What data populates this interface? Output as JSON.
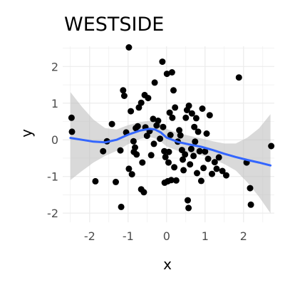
{
  "chart_data": {
    "type": "scatter",
    "title": "WESTSIDE",
    "xlabel": "x",
    "ylabel": "y",
    "xlim": [
      -2.7,
      2.8
    ],
    "ylim": [
      -2.25,
      2.55
    ],
    "x_ticks": [
      -2,
      -1,
      0,
      1,
      2
    ],
    "y_ticks": [
      -2,
      -1,
      0,
      1,
      2
    ],
    "x_tick_labels": [
      "-2",
      "-1",
      "0",
      "1",
      "2"
    ],
    "y_tick_labels": [
      "-2",
      "-1",
      "0",
      "1",
      "2"
    ],
    "grid": true,
    "point_color": "#000000",
    "smooth_color": "#3366ff",
    "band_color": "#bfbfbf",
    "points": [
      [
        -2.47,
        0.6
      ],
      [
        -2.46,
        0.22
      ],
      [
        -1.85,
        -1.13
      ],
      [
        -1.65,
        -0.31
      ],
      [
        -1.55,
        -0.04
      ],
      [
        -1.42,
        0.43
      ],
      [
        -1.32,
        -1.15
      ],
      [
        -1.2,
        -0.29
      ],
      [
        -1.18,
        -1.83
      ],
      [
        -1.13,
        1.35
      ],
      [
        -1.1,
        1.2
      ],
      [
        -1.05,
        0.2
      ],
      [
        -0.98,
        -0.79
      ],
      [
        -0.98,
        2.52
      ],
      [
        -0.93,
        0.78
      ],
      [
        -0.9,
        -0.94
      ],
      [
        -0.86,
        -0.04
      ],
      [
        -0.85,
        -0.33
      ],
      [
        -0.82,
        -0.21
      ],
      [
        -0.8,
        0.32
      ],
      [
        -0.78,
        -0.4
      ],
      [
        -0.75,
        0.37
      ],
      [
        -0.72,
        0.88
      ],
      [
        -0.66,
        1.01
      ],
      [
        -0.66,
        -1.35
      ],
      [
        -0.63,
        -0.62
      ],
      [
        -0.59,
        -1.43
      ],
      [
        -0.57,
        1.22
      ],
      [
        -0.55,
        0.34
      ],
      [
        -0.51,
        0.11
      ],
      [
        -0.48,
        1.14
      ],
      [
        -0.44,
        0.24
      ],
      [
        -0.4,
        -0.42
      ],
      [
        -0.35,
        0.57
      ],
      [
        -0.33,
        -0.11
      ],
      [
        -0.31,
        1.56
      ],
      [
        -0.26,
        0.39
      ],
      [
        -0.22,
        0.52
      ],
      [
        -0.17,
        0.03
      ],
      [
        -0.11,
        2.13
      ],
      [
        -0.09,
        0.35
      ],
      [
        -0.06,
        -0.31
      ],
      [
        -0.05,
        -1.17
      ],
      [
        -0.03,
        -0.47
      ],
      [
        0.01,
        1.8
      ],
      [
        0.03,
        -1.13
      ],
      [
        0.05,
        -0.62
      ],
      [
        0.06,
        -0.33
      ],
      [
        0.08,
        0.74
      ],
      [
        0.1,
        0.13
      ],
      [
        0.12,
        -1.1
      ],
      [
        0.14,
        1.84
      ],
      [
        0.15,
        0.6
      ],
      [
        0.18,
        1.35
      ],
      [
        0.2,
        -0.75
      ],
      [
        0.22,
        0.88
      ],
      [
        0.25,
        -1.11
      ],
      [
        0.29,
        -0.05
      ],
      [
        0.33,
        0.26
      ],
      [
        0.36,
        0.12
      ],
      [
        0.4,
        -0.28
      ],
      [
        0.42,
        -0.54
      ],
      [
        0.44,
        -0.83
      ],
      [
        0.48,
        -0.4
      ],
      [
        0.5,
        0.6
      ],
      [
        0.53,
        0.81
      ],
      [
        0.55,
        -1.65
      ],
      [
        0.57,
        -1.86
      ],
      [
        0.58,
        0.93
      ],
      [
        0.61,
        -0.67
      ],
      [
        0.64,
        -0.25
      ],
      [
        0.66,
        0.72
      ],
      [
        0.7,
        -0.44
      ],
      [
        0.72,
        0.35
      ],
      [
        0.74,
        -0.05
      ],
      [
        0.77,
        0.59
      ],
      [
        0.79,
        -0.91
      ],
      [
        0.82,
        0.22
      ],
      [
        0.86,
        -0.31
      ],
      [
        0.9,
        -1.12
      ],
      [
        0.93,
        0.85
      ],
      [
        0.96,
        -0.77
      ],
      [
        1.0,
        -0.32
      ],
      [
        1.04,
        0.17
      ],
      [
        1.08,
        -0.52
      ],
      [
        1.12,
        0.67
      ],
      [
        1.18,
        -0.93
      ],
      [
        1.25,
        -0.61
      ],
      [
        1.3,
        -0.79
      ],
      [
        1.36,
        -0.48
      ],
      [
        1.45,
        -0.85
      ],
      [
        1.55,
        -0.97
      ],
      [
        1.88,
        1.7
      ],
      [
        2.08,
        -0.62
      ],
      [
        2.17,
        -1.32
      ],
      [
        2.19,
        -1.77
      ],
      [
        2.72,
        -0.17
      ]
    ],
    "smooth": {
      "x": [
        -2.5,
        -2.2,
        -1.9,
        -1.6,
        -1.3,
        -1.0,
        -0.7,
        -0.45,
        -0.3,
        -0.15,
        0.0,
        0.3,
        0.6,
        0.9,
        1.2,
        1.5,
        1.8,
        2.1,
        2.4,
        2.7
      ],
      "y": [
        0.05,
        0.0,
        -0.05,
        -0.07,
        0.0,
        0.14,
        0.25,
        0.3,
        0.28,
        0.2,
        0.06,
        -0.06,
        -0.13,
        -0.19,
        -0.28,
        -0.38,
        -0.47,
        -0.55,
        -0.62,
        -0.7
      ],
      "lower": [
        -1.1,
        -0.85,
        -0.62,
        -0.44,
        -0.3,
        -0.12,
        0.02,
        0.08,
        0.04,
        -0.05,
        -0.18,
        -0.3,
        -0.37,
        -0.42,
        -0.52,
        -0.66,
        -0.84,
        -1.16,
        -1.55,
        -2.0
      ],
      "upper": [
        1.3,
        0.9,
        0.55,
        0.32,
        0.28,
        0.4,
        0.48,
        0.52,
        0.52,
        0.45,
        0.3,
        0.18,
        0.11,
        0.04,
        -0.04,
        -0.1,
        -0.1,
        0.06,
        0.31,
        0.7
      ]
    }
  }
}
